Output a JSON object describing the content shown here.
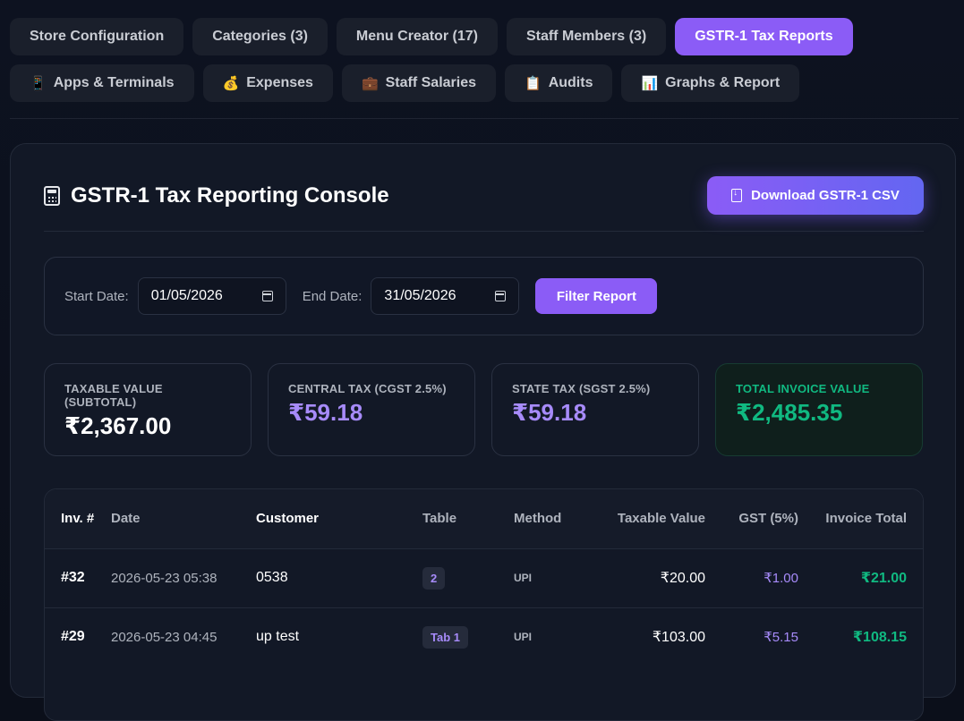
{
  "tabs": {
    "row1": [
      {
        "label": "Store Configuration",
        "icon": ""
      },
      {
        "label": "Categories (3)",
        "icon": ""
      },
      {
        "label": "Menu Creator (17)",
        "icon": ""
      },
      {
        "label": "Staff Members (3)",
        "icon": ""
      },
      {
        "label": "GSTR-1 Tax Reports",
        "icon": "",
        "active": true
      }
    ],
    "row2": [
      {
        "label": "Apps & Terminals",
        "icon": "📱"
      },
      {
        "label": "Expenses",
        "icon": "💰"
      },
      {
        "label": "Staff Salaries",
        "icon": "💼"
      },
      {
        "label": "Audits",
        "icon": "📋"
      },
      {
        "label": "Graphs & Report",
        "icon": "📊"
      }
    ]
  },
  "console": {
    "title": "GSTR-1 Tax Reporting Console",
    "download_label": "Download GSTR-1 CSV"
  },
  "filter": {
    "start_label": "Start Date:",
    "start_value": "01/05/2026",
    "end_label": "End Date:",
    "end_value": "31/05/2026",
    "button_label": "Filter Report"
  },
  "stats": {
    "taxable": {
      "label": "TAXABLE VALUE (SUBTOTAL)",
      "value": "₹2,367.00"
    },
    "cgst": {
      "label": "CENTRAL TAX (CGST 2.5%)",
      "value": "₹59.18"
    },
    "sgst": {
      "label": "STATE TAX (SGST 2.5%)",
      "value": "₹59.18"
    },
    "total": {
      "label": "TOTAL INVOICE VALUE",
      "value": "₹2,485.35"
    }
  },
  "table": {
    "headers": {
      "inv": "Inv. #",
      "date": "Date",
      "customer": "Customer",
      "table": "Table",
      "method": "Method",
      "taxable": "Taxable Value",
      "gst": "GST (5%)",
      "total": "Invoice Total"
    },
    "rows": [
      {
        "inv": "#32",
        "date": "2026-05-23 05:38",
        "customer": "0538",
        "table": "2",
        "method": "UPI",
        "taxable": "₹20.00",
        "gst": "₹1.00",
        "total": "₹21.00"
      },
      {
        "inv": "#29",
        "date": "2026-05-23 04:45",
        "customer": "up test",
        "table": "Tab 1",
        "method": "UPI",
        "taxable": "₹103.00",
        "gst": "₹5.15",
        "total": "₹108.15"
      }
    ]
  },
  "colors": {
    "accent": "#8b5cf6",
    "positive": "#10b981",
    "background": "#0b0f1a"
  }
}
